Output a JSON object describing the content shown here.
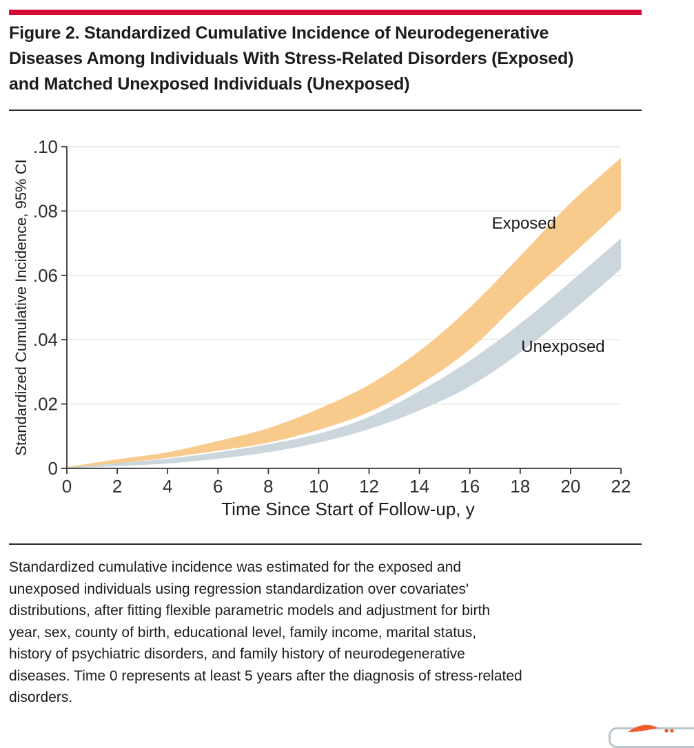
{
  "figure": {
    "title_lines": [
      "Figure 2. Standardized Cumulative Incidence of Neurodegenerative",
      "Diseases Among Individuals With Stress-Related Disorders (Exposed)",
      "and Matched Unexposed Individuals (Unexposed)"
    ],
    "caption_lines": [
      "Standardized cumulative incidence was estimated for the exposed and",
      "unexposed individuals using regression standardization over covariates'",
      "distributions, after fitting flexible parametric models and adjustment for birth",
      "year, sex, county of birth, educational level, family income, marital status,",
      "history of psychiatric disorders, and family history of neurodegenerative",
      "diseases. Time 0 represents at least 5 years after the diagnosis of stress-related",
      "disorders."
    ],
    "accent_color": "#d60c38"
  },
  "chart_data": {
    "type": "area",
    "title": "",
    "xlabel": "Time Since Start of Follow-up, y",
    "ylabel": "Standardized Cumulative Incidence, 95% CI",
    "xlim": [
      0,
      22
    ],
    "ylim": [
      0,
      0.1
    ],
    "grid": "horizontal",
    "grid_color": "#e6e6e4",
    "axis_color": "#373737",
    "x_ticks": {
      "values": [
        0,
        2,
        4,
        6,
        8,
        10,
        12,
        14,
        16,
        18,
        20,
        22
      ],
      "labels": [
        "0",
        "2",
        "4",
        "6",
        "8",
        "10",
        "12",
        "14",
        "16",
        "18",
        "20",
        "22"
      ]
    },
    "y_ticks": {
      "values": [
        0,
        0.02,
        0.04,
        0.06,
        0.08,
        0.1
      ],
      "labels": [
        "0",
        ".02",
        ".04",
        ".06",
        ".08",
        ".10"
      ]
    },
    "x": [
      0,
      2,
      4,
      6,
      8,
      10,
      12,
      14,
      16,
      18,
      20,
      22
    ],
    "series": [
      {
        "name": "Exposed",
        "color": "#f8ca8c",
        "upper": [
          0.0004,
          0.0028,
          0.005,
          0.0085,
          0.0125,
          0.0185,
          0.026,
          0.0365,
          0.05,
          0.066,
          0.0825,
          0.0965
        ],
        "lower": [
          0,
          0.0015,
          0.0033,
          0.0055,
          0.008,
          0.012,
          0.0175,
          0.026,
          0.037,
          0.052,
          0.066,
          0.0805
        ],
        "label_x": 18.15,
        "label_y": 0.0762
      },
      {
        "name": "Unexposed",
        "color": "#ccd7dd",
        "upper": [
          0.0002,
          0.0016,
          0.003,
          0.005,
          0.0075,
          0.0108,
          0.016,
          0.024,
          0.0335,
          0.045,
          0.058,
          0.0715
        ],
        "lower": [
          0,
          0.0007,
          0.0015,
          0.003,
          0.005,
          0.008,
          0.0122,
          0.018,
          0.0255,
          0.036,
          0.0485,
          0.062
        ],
        "label_x": 19.7,
        "label_y": 0.0379
      }
    ],
    "legend_position": "inline-annotations"
  },
  "corner_widget": {
    "border_color": "#bac6cd",
    "logo_color": "#ef5b2d"
  }
}
